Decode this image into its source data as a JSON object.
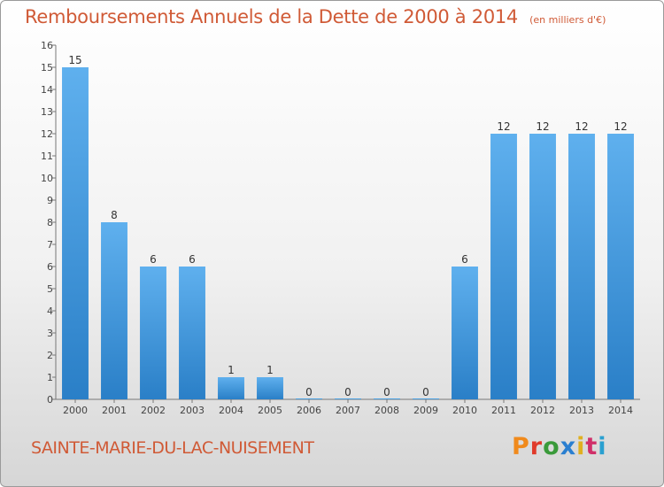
{
  "chart_data": {
    "type": "bar",
    "title": "Remboursements Annuels de la Dette de 2000 à 2014",
    "subtitle": "(en milliers d'€)",
    "categories": [
      "2000",
      "2001",
      "2002",
      "2003",
      "2004",
      "2005",
      "2006",
      "2007",
      "2008",
      "2009",
      "2010",
      "2011",
      "2012",
      "2013",
      "2014"
    ],
    "values": [
      15,
      8,
      6,
      6,
      1,
      1,
      0,
      0,
      0,
      0,
      6,
      12,
      12,
      12,
      12
    ],
    "data_labels": [
      "15",
      "8",
      "6",
      "6",
      "1",
      "1",
      "0",
      "0",
      "0",
      "0",
      "6",
      "12",
      "12",
      "12",
      "12"
    ],
    "ylim": [
      0,
      16
    ],
    "yticks": [
      "0",
      "1",
      "2",
      "3",
      "4",
      "5",
      "6",
      "7",
      "8",
      "9",
      "10",
      "11",
      "12",
      "13",
      "14",
      "15",
      "16"
    ],
    "xlabel": "",
    "ylabel": "",
    "grid": false,
    "bar_color": "#4a9fe0"
  },
  "footer": {
    "commune": "SAINTE-MARIE-DU-LAC-NUISEMENT",
    "logo": "Proxiti"
  },
  "colors": {
    "title": "#d05a36",
    "logo_letters": [
      "#f08a1c",
      "#e03a2a",
      "#3a9a3a",
      "#2a7fd0",
      "#e0b020",
      "#d0306a",
      "#2aa0d0"
    ]
  }
}
